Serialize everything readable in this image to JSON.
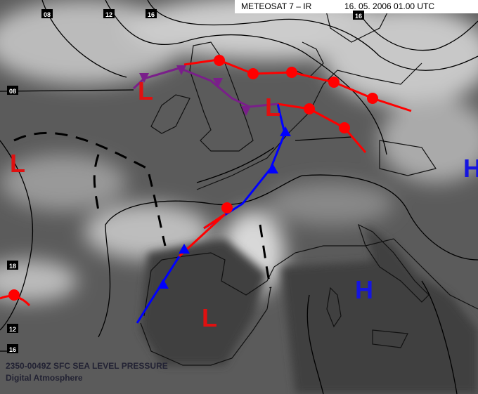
{
  "header": {
    "satellite": "METEOSAT 7 – IR",
    "timestamp": "16. 05. 2006 01.00 UTC"
  },
  "isobar_labels": [
    "08",
    "12",
    "16",
    "16",
    "08",
    "18",
    "12",
    "16"
  ],
  "pressure_centers": [
    {
      "label": "L",
      "kind": "low"
    },
    {
      "label": "L",
      "kind": "low"
    },
    {
      "label": "L",
      "kind": "low"
    },
    {
      "label": "L",
      "kind": "low"
    },
    {
      "label": "H",
      "kind": "high"
    },
    {
      "label": "H",
      "kind": "high"
    }
  ],
  "footer": {
    "product": "2350-0049Z SFC SEA LEVEL PRESSURE",
    "source": "Digital Atmosphere"
  }
}
